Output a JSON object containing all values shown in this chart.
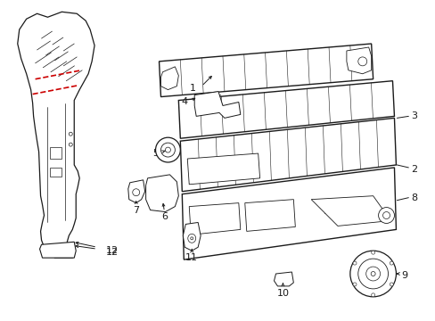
{
  "bg_color": "#ffffff",
  "line_color": "#1a1a1a",
  "red_color": "#cc0000",
  "fig_w": 4.89,
  "fig_h": 3.6,
  "dpi": 100
}
